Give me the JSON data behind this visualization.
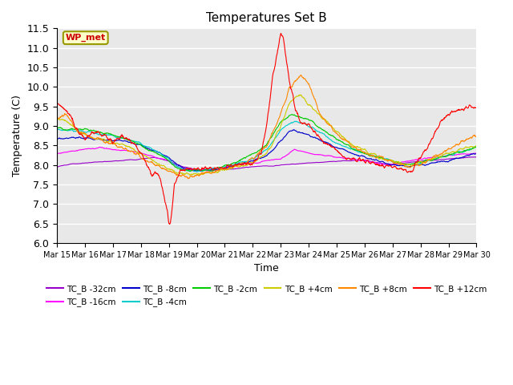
{
  "title": "Temperatures Set B",
  "xlabel": "Time",
  "ylabel": "Temperature (C)",
  "ylim": [
    6.0,
    11.5
  ],
  "yticks": [
    6.0,
    6.5,
    7.0,
    7.5,
    8.0,
    8.5,
    9.0,
    9.5,
    10.0,
    10.5,
    11.0,
    11.5
  ],
  "x_tick_labels": [
    "Mar 15",
    "Mar 16",
    "Mar 17",
    "Mar 18",
    "Mar 19",
    "Mar 20",
    "Mar 21",
    "Mar 22",
    "Mar 23",
    "Mar 24",
    "Mar 25",
    "Mar 26",
    "Mar 27",
    "Mar 28",
    "Mar 29",
    "Mar 30"
  ],
  "series": [
    {
      "label": "TC_B -32cm",
      "color": "#9900CC"
    },
    {
      "label": "TC_B -16cm",
      "color": "#FF00FF"
    },
    {
      "label": "TC_B -8cm",
      "color": "#0000CC"
    },
    {
      "label": "TC_B -4cm",
      "color": "#00CCCC"
    },
    {
      "label": "TC_B -2cm",
      "color": "#00CC00"
    },
    {
      "label": "TC_B +4cm",
      "color": "#CCCC00"
    },
    {
      "label": "TC_B +8cm",
      "color": "#FF8800"
    },
    {
      "label": "TC_B +12cm",
      "color": "#FF0000"
    }
  ],
  "wp_met_label": "WP_met",
  "wp_met_color": "#CC0000",
  "wp_met_bg": "#FFFFCC",
  "plot_bg": "#E8E8E8",
  "title_fontsize": 11,
  "axis_fontsize": 9
}
